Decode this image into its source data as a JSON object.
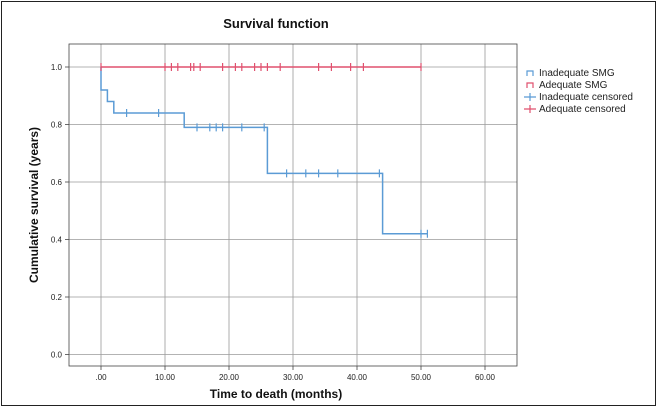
{
  "chart_data": {
    "type": "line",
    "title": "Survival function",
    "xlabel": "Time to death (months)",
    "ylabel": "Cumulative survival (years)",
    "xlim": [
      -5,
      65
    ],
    "ylim": [
      -0.04,
      1.08
    ],
    "xticks": [
      0,
      10,
      20,
      30,
      40,
      50,
      60
    ],
    "xtick_labels": [
      ".00",
      "10.00",
      "20.00",
      "30.00",
      "40.00",
      "50.00",
      "60.00"
    ],
    "yticks": [
      0,
      0.2,
      0.4,
      0.6,
      0.8,
      1.0
    ],
    "ytick_labels": [
      "0.0",
      "0.2",
      "0.4",
      "0.6",
      "0.8",
      "1.0"
    ],
    "grid": true,
    "legend_position": "top-right",
    "legend": [
      "Inadequate SMG",
      "Adequate SMG",
      "Inadequate censored",
      "Adequate censored"
    ],
    "series": [
      {
        "name": "Inadequate SMG",
        "color": "#5b9bd5",
        "style": "step",
        "steps": [
          [
            0,
            1.0
          ],
          [
            0,
            0.92
          ],
          [
            1,
            0.92
          ],
          [
            1,
            0.88
          ],
          [
            2,
            0.88
          ],
          [
            2,
            0.84
          ],
          [
            13,
            0.84
          ],
          [
            13,
            0.79
          ],
          [
            26,
            0.79
          ],
          [
            26,
            0.63
          ],
          [
            44,
            0.63
          ],
          [
            44,
            0.42
          ],
          [
            51,
            0.42
          ]
        ],
        "censored": [
          [
            4,
            0.84
          ],
          [
            9,
            0.84
          ],
          [
            15,
            0.79
          ],
          [
            17,
            0.79
          ],
          [
            18,
            0.79
          ],
          [
            19,
            0.79
          ],
          [
            22,
            0.79
          ],
          [
            25.5,
            0.79
          ],
          [
            29,
            0.63
          ],
          [
            32,
            0.63
          ],
          [
            34,
            0.63
          ],
          [
            37,
            0.63
          ],
          [
            43.5,
            0.63
          ],
          [
            50,
            0.42
          ],
          [
            51,
            0.42
          ]
        ]
      },
      {
        "name": "Adequate SMG",
        "color": "#e0506e",
        "style": "step",
        "steps": [
          [
            0,
            1.0
          ],
          [
            50,
            1.0
          ]
        ],
        "censored": [
          [
            0,
            1.0
          ],
          [
            10,
            1.0
          ],
          [
            11,
            1.0
          ],
          [
            12,
            1.0
          ],
          [
            14,
            1.0
          ],
          [
            14.5,
            1.0
          ],
          [
            15.5,
            1.0
          ],
          [
            19,
            1.0
          ],
          [
            21,
            1.0
          ],
          [
            22,
            1.0
          ],
          [
            24,
            1.0
          ],
          [
            25,
            1.0
          ],
          [
            26,
            1.0
          ],
          [
            28,
            1.0
          ],
          [
            34,
            1.0
          ],
          [
            36,
            1.0
          ],
          [
            39,
            1.0
          ],
          [
            41,
            1.0
          ],
          [
            50,
            1.0
          ]
        ]
      }
    ]
  }
}
